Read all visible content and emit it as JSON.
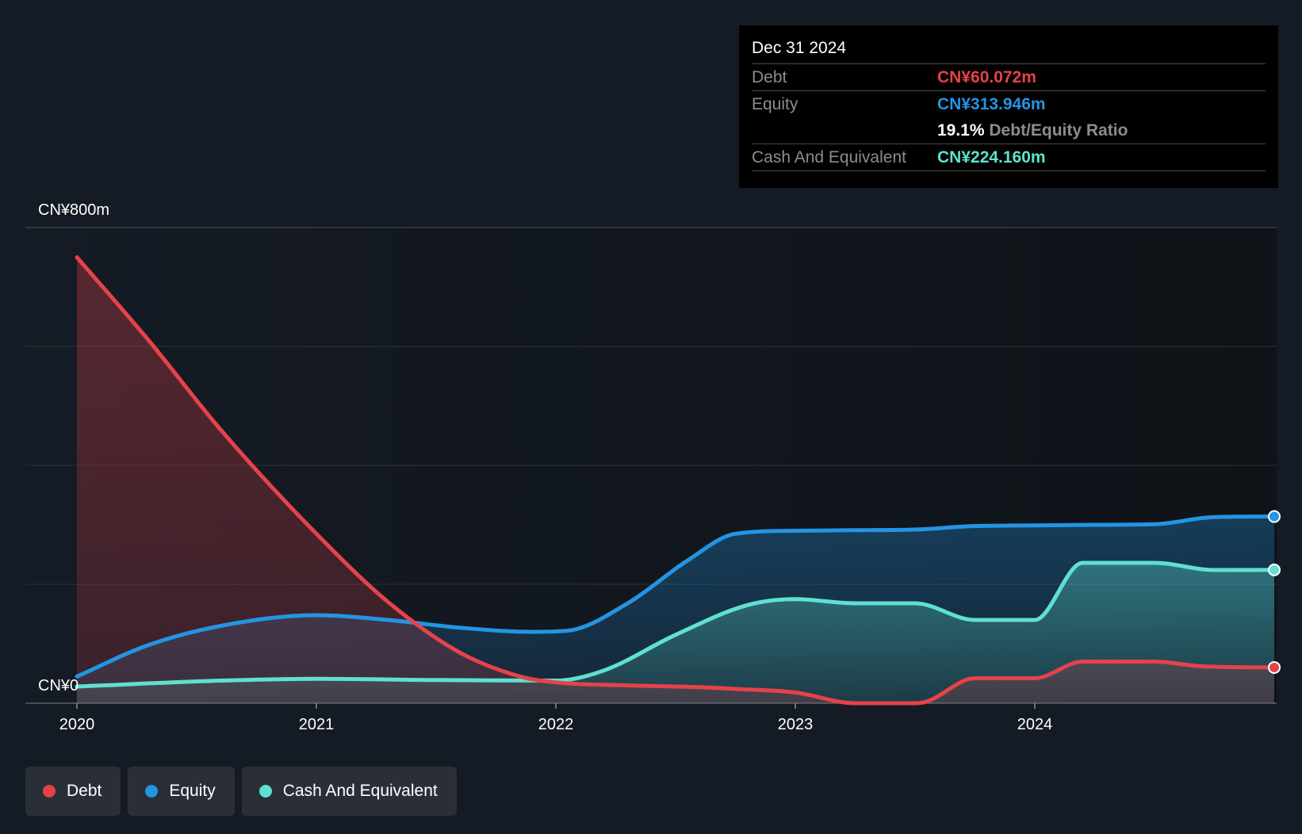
{
  "tooltip": {
    "date": "Dec 31 2024",
    "debt_label": "Debt",
    "debt_value": "CN¥60.072m",
    "equity_label": "Equity",
    "equity_value": "CN¥313.946m",
    "ratio_value": "19.1%",
    "ratio_label": "Debt/Equity Ratio",
    "cash_label": "Cash And Equivalent",
    "cash_value": "CN¥224.160m"
  },
  "legend": [
    {
      "label": "Debt",
      "color": "#e5424a"
    },
    {
      "label": "Equity",
      "color": "#2494e3"
    },
    {
      "label": "Cash And Equivalent",
      "color": "#5fe1cf"
    }
  ],
  "chart_data": {
    "type": "area",
    "x_ticks": [
      "2020",
      "2021",
      "2022",
      "2023",
      "2024"
    ],
    "y_tick_labels": {
      "top": "CN¥800m",
      "bottom": "CN¥0"
    },
    "ylim": [
      0,
      800
    ],
    "xlim": [
      2020.0,
      2025.0
    ],
    "grid": true,
    "series": [
      {
        "name": "Debt",
        "color": "#e5424a",
        "points": [
          [
            2020.0,
            750
          ],
          [
            2020.3,
            610
          ],
          [
            2020.6,
            460
          ],
          [
            2021.0,
            285
          ],
          [
            2021.3,
            170
          ],
          [
            2021.6,
            85
          ],
          [
            2021.85,
            45
          ],
          [
            2022.0,
            35
          ],
          [
            2022.3,
            30
          ],
          [
            2022.6,
            27
          ],
          [
            2022.75,
            24
          ],
          [
            2023.0,
            18
          ],
          [
            2023.25,
            0
          ],
          [
            2023.5,
            0
          ],
          [
            2023.55,
            3
          ],
          [
            2023.75,
            42
          ],
          [
            2024.0,
            42
          ],
          [
            2024.2,
            70
          ],
          [
            2024.5,
            70
          ],
          [
            2024.7,
            62
          ],
          [
            2025.0,
            60.072
          ]
        ]
      },
      {
        "name": "Equity",
        "color": "#2494e3",
        "points": [
          [
            2020.0,
            45
          ],
          [
            2020.3,
            98
          ],
          [
            2020.6,
            130
          ],
          [
            2021.0,
            148
          ],
          [
            2021.3,
            140
          ],
          [
            2021.6,
            127
          ],
          [
            2021.9,
            120
          ],
          [
            2022.05,
            122
          ],
          [
            2022.3,
            168
          ],
          [
            2022.55,
            240
          ],
          [
            2022.75,
            285
          ],
          [
            2023.0,
            290
          ],
          [
            2023.25,
            291
          ],
          [
            2023.5,
            292
          ],
          [
            2023.75,
            298
          ],
          [
            2024.0,
            299
          ],
          [
            2024.25,
            300
          ],
          [
            2024.5,
            301
          ],
          [
            2024.75,
            313
          ],
          [
            2025.0,
            313.946
          ]
        ]
      },
      {
        "name": "Cash And Equivalent",
        "color": "#5fe1cf",
        "points": [
          [
            2020.0,
            28
          ],
          [
            2020.6,
            38
          ],
          [
            2021.0,
            41
          ],
          [
            2021.5,
            39
          ],
          [
            2022.0,
            38
          ],
          [
            2022.2,
            55
          ],
          [
            2022.5,
            115
          ],
          [
            2022.8,
            165
          ],
          [
            2023.0,
            175
          ],
          [
            2023.25,
            168
          ],
          [
            2023.5,
            168
          ],
          [
            2023.75,
            140
          ],
          [
            2024.0,
            140
          ],
          [
            2024.2,
            236
          ],
          [
            2024.5,
            236
          ],
          [
            2024.75,
            224
          ],
          [
            2025.0,
            224.16
          ]
        ]
      }
    ]
  }
}
